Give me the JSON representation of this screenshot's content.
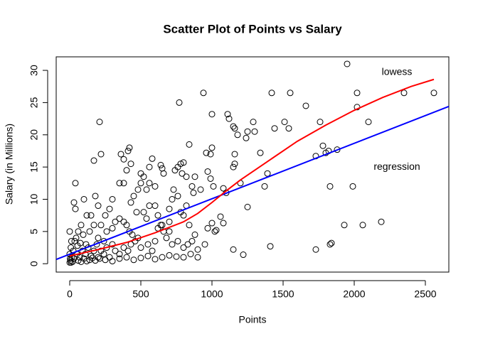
{
  "chart_data": {
    "type": "scatter",
    "title": "Scatter Plot of Points vs Salary",
    "xlabel": "Points",
    "ylabel": "Salary (in Millions)",
    "xlim": [
      -95,
      2665
    ],
    "ylim": [
      -1.3,
      32.1
    ],
    "xticks": [
      0,
      500,
      1000,
      1500,
      2000,
      2500
    ],
    "yticks": [
      0,
      5,
      10,
      15,
      20,
      25,
      30
    ],
    "color": "#000000",
    "x": [
      1950,
      2350,
      2560,
      2020,
      1420,
      1550,
      940,
      770,
      1660,
      2020,
      2100,
      1760,
      1290,
      1510,
      1540,
      1440,
      210,
      1000,
      1110,
      1120,
      1150,
      1160,
      1300,
      1250,
      1180,
      1240,
      1820,
      1880,
      1780,
      1800,
      1730,
      1830,
      1990,
      2060,
      2190,
      1930,
      1840,
      1830,
      1730,
      1410,
      1220,
      1150,
      1370,
      1390,
      1340,
      1160,
      1160,
      1150,
      1200,
      1100,
      1080,
      1250,
      1060,
      1020,
      1000,
      1030,
      970,
      880,
      950,
      900,
      1080,
      360,
      380,
      410,
      420,
      430,
      400,
      580,
      560,
      640,
      650,
      660,
      740,
      760,
      780,
      800,
      790,
      820,
      840,
      860,
      870,
      880,
      960,
      990,
      1000,
      970,
      990,
      1010,
      920,
      500,
      520,
      500,
      480,
      540,
      560,
      600,
      450,
      430,
      380,
      350,
      300,
      280,
      250,
      200,
      180,
      170,
      220,
      40,
      30,
      40,
      100,
      120,
      150,
      170,
      220,
      260,
      300,
      320,
      350,
      380,
      400,
      420,
      440,
      470,
      520,
      540,
      560,
      600,
      620,
      650,
      700,
      720,
      730,
      760,
      780,
      800,
      820,
      840,
      700,
      680,
      720,
      760,
      800,
      830,
      860,
      600,
      580,
      550,
      500,
      480,
      460,
      430,
      410,
      380,
      350,
      320,
      300,
      280,
      260,
      240,
      220,
      200,
      190,
      170,
      150,
      130,
      110,
      90,
      70,
      50,
      30,
      20,
      10,
      5,
      15,
      25,
      35,
      45,
      60,
      80,
      100,
      120,
      140,
      160,
      180,
      210,
      250,
      300,
      350,
      400,
      450,
      500,
      550,
      600,
      650,
      700,
      750,
      800,
      850,
      900,
      620,
      640,
      660,
      700,
      60,
      80,
      140,
      200,
      240,
      0,
      0,
      0,
      3,
      8,
      12,
      55,
      75,
      95,
      115
    ],
    "values": [
      31,
      26.5,
      26.5,
      26.5,
      26.5,
      26.5,
      26.5,
      25,
      24.5,
      24.3,
      22,
      22,
      22,
      22,
      21,
      21,
      22,
      23.2,
      23.2,
      22.5,
      21.3,
      21,
      20.5,
      20.5,
      20,
      19.5,
      17.5,
      17.7,
      18.3,
      17.2,
      16.7,
      12,
      12,
      6,
      6.5,
      6,
      3.2,
      3,
      2.2,
      2.7,
      1.4,
      2.2,
      12,
      14,
      17.2,
      17,
      15.5,
      15,
      12.5,
      11,
      11.7,
      8.8,
      7.3,
      5,
      6.3,
      5.2,
      5.5,
      4.5,
      3,
      2.2,
      6.3,
      17,
      16.2,
      17.5,
      18,
      15.5,
      14.5,
      16.3,
      15,
      15.3,
      14.8,
      14,
      14.5,
      15,
      15.5,
      15.7,
      14,
      13.5,
      18.5,
      12,
      11,
      13.5,
      17.2,
      17,
      18,
      14.3,
      13.2,
      12,
      11.5,
      14,
      13.5,
      12.5,
      11.5,
      11.5,
      12.5,
      12,
      10.5,
      9.5,
      12.5,
      12.5,
      10,
      8.5,
      7.5,
      9,
      10.5,
      16,
      17,
      12.5,
      9.5,
      8.5,
      10,
      7.5,
      7.5,
      6,
      6,
      5,
      5.5,
      6.5,
      7,
      6.5,
      6,
      5,
      4.5,
      8,
      8,
      7,
      9,
      9,
      7.5,
      6,
      8.5,
      10,
      11.5,
      10.5,
      8,
      7.5,
      9,
      6,
      5,
      4,
      3,
      3.5,
      2.5,
      3,
      3.5,
      3.5,
      2,
      3,
      2.5,
      4,
      3.5,
      3,
      2,
      2.5,
      1.5,
      2,
      3,
      1,
      2.5,
      1.5,
      2,
      1,
      3,
      2,
      1.2,
      2.5,
      1.5,
      2,
      1,
      1.5,
      0.8,
      0.3,
      0.2,
      0.5,
      1,
      2,
      3.5,
      4,
      0.5,
      0.3,
      0.8,
      0.4,
      0.6,
      0.9,
      0.5,
      0.8,
      0.6,
      0.4,
      0.8,
      1,
      0.6,
      0.9,
      1.2,
      0.7,
      1,
      1.3,
      1.1,
      1,
      1.5,
      1,
      5.5,
      6,
      5,
      6.5,
      5,
      6,
      5,
      4,
      3.5,
      5,
      1.5,
      0.2,
      0.8,
      2.5,
      3.5,
      2.8,
      3.2,
      4.5,
      3
    ],
    "lines": [
      {
        "x": [
          -95,
          2665
        ],
        "values": [
          0.66,
          24.4
        ],
        "color": "#0000ff"
      },
      {
        "x": [
          0,
          200,
          400,
          600,
          800,
          900,
          1000,
          1100,
          1200,
          1400,
          1600,
          1800,
          2000,
          2200,
          2400,
          2560
        ],
        "values": [
          1.2,
          2.2,
          3.3,
          4.8,
          6.5,
          7.8,
          9.5,
          11.3,
          13,
          16,
          19,
          21.5,
          23.8,
          25.8,
          27.5,
          28.6
        ],
        "color": "#ff0000"
      }
    ],
    "annotations": [
      {
        "text": "lowess",
        "x": 2300,
        "y": 29.7
      },
      {
        "text": "regression",
        "x": 2300,
        "y": 15
      }
    ]
  }
}
